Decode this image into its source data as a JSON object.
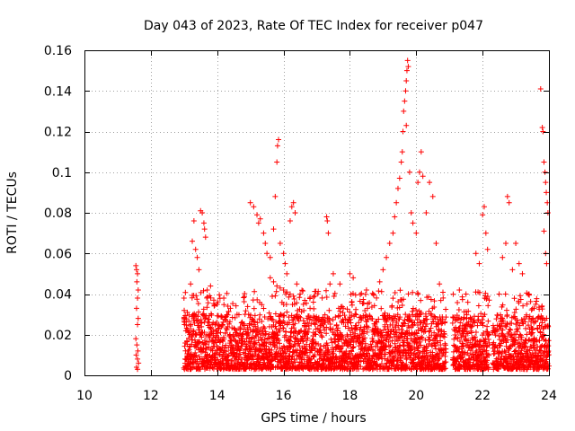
{
  "chart_data": {
    "type": "scatter",
    "title": "Day 043 of 2023, Rate Of TEC Index for receiver p047",
    "xlabel": "GPS time / hours",
    "ylabel": "ROTI / TECUs",
    "xlim": [
      10,
      24
    ],
    "ylim": [
      0,
      0.16
    ],
    "x_ticks": [
      10,
      12,
      14,
      16,
      18,
      20,
      22,
      24
    ],
    "x_tick_labels": [
      "10",
      "12",
      "14",
      "16",
      "18",
      "20",
      "22",
      "24"
    ],
    "y_ticks": [
      0,
      0.02,
      0.04,
      0.06,
      0.08,
      0.1,
      0.12,
      0.14,
      0.16
    ],
    "y_tick_labels": [
      "0",
      "0.02",
      "0.04",
      "0.06",
      "0.08",
      "0.1",
      "0.12",
      "0.14",
      "0.16"
    ],
    "grid": true,
    "marker": "+",
    "color": "#ff0000",
    "series": [
      {
        "name": "ROTI",
        "points": [
          [
            11.55,
            0.054
          ],
          [
            11.57,
            0.052
          ],
          [
            11.6,
            0.05
          ],
          [
            11.58,
            0.046
          ],
          [
            11.62,
            0.042
          ],
          [
            11.6,
            0.038
          ],
          [
            11.57,
            0.033
          ],
          [
            11.62,
            0.028
          ],
          [
            11.6,
            0.025
          ],
          [
            11.55,
            0.018
          ],
          [
            11.58,
            0.015
          ],
          [
            11.61,
            0.012
          ],
          [
            11.56,
            0.01
          ],
          [
            11.6,
            0.008
          ],
          [
            11.63,
            0.006
          ],
          [
            11.57,
            0.004
          ],
          [
            11.6,
            0.003
          ],
          [
            13.0,
            0.038
          ],
          [
            13.1,
            0.031
          ],
          [
            13.2,
            0.045
          ],
          [
            13.25,
            0.066
          ],
          [
            13.3,
            0.076
          ],
          [
            13.35,
            0.062
          ],
          [
            13.4,
            0.058
          ],
          [
            13.45,
            0.052
          ],
          [
            13.5,
            0.081
          ],
          [
            13.55,
            0.08
          ],
          [
            13.6,
            0.075
          ],
          [
            13.62,
            0.072
          ],
          [
            13.65,
            0.068
          ],
          [
            13.7,
            0.042
          ],
          [
            13.8,
            0.044
          ],
          [
            13.9,
            0.037
          ],
          [
            14.0,
            0.035
          ],
          [
            14.2,
            0.038
          ],
          [
            14.4,
            0.033
          ],
          [
            14.6,
            0.03
          ],
          [
            15.0,
            0.085
          ],
          [
            15.1,
            0.083
          ],
          [
            15.2,
            0.079
          ],
          [
            15.25,
            0.075
          ],
          [
            15.3,
            0.077
          ],
          [
            15.4,
            0.07
          ],
          [
            15.45,
            0.065
          ],
          [
            15.5,
            0.06
          ],
          [
            15.6,
            0.058
          ],
          [
            15.7,
            0.072
          ],
          [
            15.75,
            0.088
          ],
          [
            15.8,
            0.105
          ],
          [
            15.82,
            0.113
          ],
          [
            15.85,
            0.116
          ],
          [
            15.9,
            0.065
          ],
          [
            16.0,
            0.06
          ],
          [
            16.05,
            0.055
          ],
          [
            16.1,
            0.05
          ],
          [
            16.2,
            0.076
          ],
          [
            16.25,
            0.083
          ],
          [
            16.3,
            0.085
          ],
          [
            16.35,
            0.08
          ],
          [
            16.4,
            0.045
          ],
          [
            16.5,
            0.04
          ],
          [
            15.6,
            0.048
          ],
          [
            15.7,
            0.046
          ],
          [
            15.8,
            0.044
          ],
          [
            15.9,
            0.043
          ],
          [
            16.0,
            0.042
          ],
          [
            16.1,
            0.041
          ],
          [
            16.2,
            0.04
          ],
          [
            16.3,
            0.039
          ],
          [
            16.6,
            0.035
          ],
          [
            16.8,
            0.033
          ],
          [
            16.9,
            0.036
          ],
          [
            17.3,
            0.078
          ],
          [
            17.32,
            0.076
          ],
          [
            17.35,
            0.07
          ],
          [
            17.4,
            0.045
          ],
          [
            17.5,
            0.05
          ],
          [
            17.7,
            0.045
          ],
          [
            18.0,
            0.05
          ],
          [
            18.1,
            0.048
          ],
          [
            18.5,
            0.042
          ],
          [
            18.9,
            0.046
          ],
          [
            19.0,
            0.052
          ],
          [
            19.1,
            0.058
          ],
          [
            19.2,
            0.065
          ],
          [
            19.3,
            0.07
          ],
          [
            19.35,
            0.078
          ],
          [
            19.4,
            0.085
          ],
          [
            19.45,
            0.092
          ],
          [
            19.5,
            0.097
          ],
          [
            19.55,
            0.105
          ],
          [
            19.58,
            0.11
          ],
          [
            19.6,
            0.12
          ],
          [
            19.62,
            0.13
          ],
          [
            19.65,
            0.135
          ],
          [
            19.68,
            0.14
          ],
          [
            19.7,
            0.145
          ],
          [
            19.72,
            0.15
          ],
          [
            19.74,
            0.155
          ],
          [
            19.76,
            0.152
          ],
          [
            19.7,
            0.123
          ],
          [
            19.8,
            0.1
          ],
          [
            19.85,
            0.08
          ],
          [
            19.9,
            0.075
          ],
          [
            20.0,
            0.07
          ],
          [
            20.05,
            0.095
          ],
          [
            20.1,
            0.1
          ],
          [
            20.15,
            0.11
          ],
          [
            20.2,
            0.098
          ],
          [
            20.3,
            0.08
          ],
          [
            20.4,
            0.095
          ],
          [
            20.5,
            0.088
          ],
          [
            20.6,
            0.065
          ],
          [
            20.7,
            0.045
          ],
          [
            21.3,
            0.042
          ],
          [
            21.5,
            0.04
          ],
          [
            21.8,
            0.06
          ],
          [
            21.9,
            0.055
          ],
          [
            22.0,
            0.079
          ],
          [
            22.05,
            0.083
          ],
          [
            22.1,
            0.07
          ],
          [
            22.15,
            0.062
          ],
          [
            22.5,
            0.04
          ],
          [
            22.6,
            0.058
          ],
          [
            22.7,
            0.065
          ],
          [
            22.75,
            0.088
          ],
          [
            22.8,
            0.085
          ],
          [
            22.9,
            0.052
          ],
          [
            23.0,
            0.065
          ],
          [
            23.1,
            0.055
          ],
          [
            23.2,
            0.05
          ],
          [
            23.4,
            0.04
          ],
          [
            23.6,
            0.035
          ],
          [
            23.75,
            0.141
          ],
          [
            23.8,
            0.122
          ],
          [
            23.82,
            0.12
          ],
          [
            23.85,
            0.105
          ],
          [
            23.88,
            0.1
          ],
          [
            23.9,
            0.095
          ],
          [
            23.92,
            0.09
          ],
          [
            23.95,
            0.085
          ],
          [
            23.97,
            0.08
          ],
          [
            23.85,
            0.071
          ],
          [
            23.9,
            0.06
          ],
          [
            23.93,
            0.055
          ]
        ],
        "dense_band": {
          "segments": [
            [
              13.0,
              20.9
            ],
            [
              21.1,
              22.2
            ],
            [
              22.3,
              24.0
            ]
          ],
          "y_base": 0.003,
          "y_top": 0.03,
          "step_hours": 0.007
        }
      }
    ]
  }
}
